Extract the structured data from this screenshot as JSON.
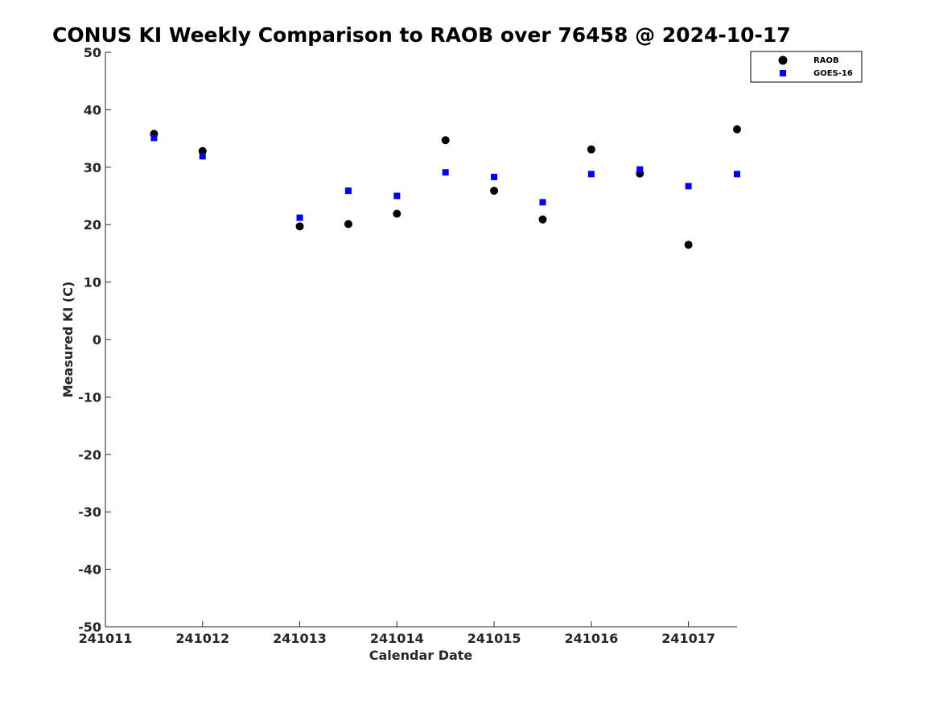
{
  "chart_data": {
    "type": "scatter",
    "title": "CONUS KI Weekly Comparison to RAOB over 76458 @ 2024-10-17",
    "xlabel": "Calendar Date",
    "ylabel": "Measured KI (C)",
    "xlim": [
      241011,
      241017.5
    ],
    "ylim": [
      -50,
      50
    ],
    "x_ticks": [
      241011,
      241012,
      241013,
      241014,
      241015,
      241016,
      241017
    ],
    "x_tick_labels": [
      "241011",
      "241012",
      "241013",
      "241014",
      "241015",
      "241016",
      "241017"
    ],
    "y_ticks": [
      50,
      40,
      30,
      20,
      10,
      0,
      -10,
      -20,
      -30,
      -40,
      -50
    ],
    "y_tick_labels": [
      "50",
      "40",
      "30",
      "20",
      "10",
      "0",
      "-10",
      "-20",
      "-30",
      "-40",
      "-50"
    ],
    "grid": false,
    "legend": "top-right",
    "series": [
      {
        "name": "RAOB",
        "marker": "circle",
        "color": "#000000",
        "x": [
          241011.5,
          241012,
          241013,
          241013.5,
          241014,
          241014.5,
          241015,
          241015.5,
          241016,
          241016.5,
          241017,
          241017.5
        ],
        "y": [
          35.8,
          32.8,
          19.7,
          20.1,
          21.9,
          34.7,
          25.9,
          20.9,
          33.1,
          28.9,
          16.5,
          36.6
        ]
      },
      {
        "name": "GOES-16",
        "marker": "square",
        "color": "#0000ff",
        "x": [
          241011.5,
          241012,
          241013,
          241013.5,
          241014,
          241014.5,
          241015,
          241015.5,
          241016,
          241016.5,
          241017,
          241017.5
        ],
        "y": [
          35.1,
          31.9,
          21.2,
          25.9,
          25.0,
          29.1,
          28.3,
          23.9,
          28.8,
          29.6,
          26.7,
          28.8
        ]
      }
    ]
  }
}
